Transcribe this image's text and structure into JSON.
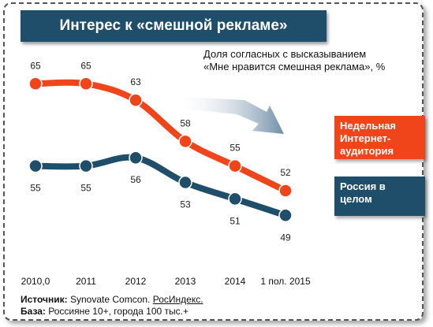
{
  "title": "Интерес к «смешной рекламе»",
  "subtitle_line1": "Доля согласных с высказыванием",
  "subtitle_line2": "«Мне нравится смешная реклама», %",
  "source_label": "Источник:",
  "source_text": "Synovate Comcon.",
  "source_link": "РосИндекс.",
  "base_label": "База:",
  "base_text": "Россияне 10+, города 100 тыс.+",
  "chart_data": {
    "type": "line",
    "categories": [
      "2010,0",
      "2011",
      "2012",
      "2013",
      "2014",
      "1 пол. 2015"
    ],
    "series": [
      {
        "name": "Недельная Интернет-аудитория",
        "values": [
          65,
          65,
          63,
          58,
          55,
          52
        ],
        "color": "#f0451b"
      },
      {
        "name": "Россия в целом",
        "values": [
          55,
          55,
          56,
          53,
          51,
          49
        ],
        "color": "#1f4e6a"
      }
    ],
    "ylim": [
      45,
      68
    ],
    "grid": false,
    "trend_arrow_color": "#8aa2b5"
  }
}
